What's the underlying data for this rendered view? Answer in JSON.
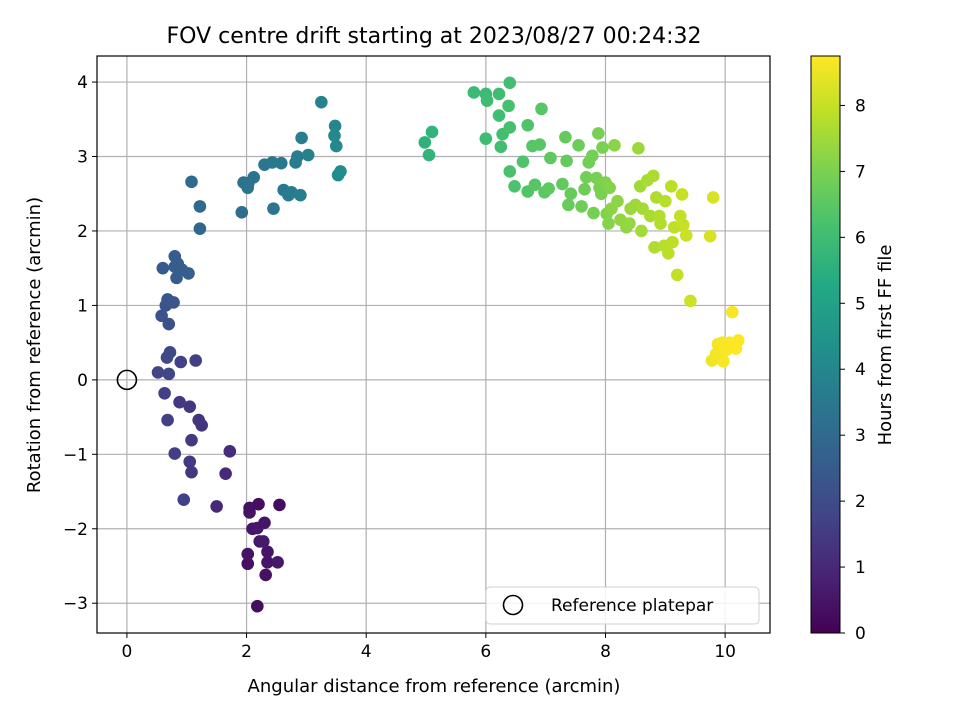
{
  "chart_data": {
    "type": "scatter",
    "title": "FOV centre drift starting at 2023/08/27 00:24:32",
    "xlabel": "Angular distance from reference (arcmin)",
    "ylabel": "Rotation from reference (arcmin)",
    "xlim": [
      -0.5,
      10.75
    ],
    "ylim": [
      -3.4,
      4.35
    ],
    "xticks": [
      "0",
      "2",
      "4",
      "6",
      "8",
      "10"
    ],
    "yticks": [
      "−3",
      "−2",
      "−1",
      "0",
      "1",
      "2",
      "3",
      "4"
    ],
    "grid": true,
    "colormap": "viridis",
    "colorbar": {
      "label": "Hours from first FF file",
      "range": [
        0,
        8.75
      ],
      "ticks": [
        "0",
        "1",
        "2",
        "3",
        "4",
        "5",
        "6",
        "7",
        "8"
      ]
    },
    "legend": {
      "position": "lower-right",
      "entries": [
        {
          "label": "Reference platepar",
          "marker": "open-circle"
        }
      ]
    },
    "reference_point": {
      "x": 0,
      "y": 0
    },
    "points": [
      {
        "x": 2.18,
        "y": -3.04,
        "h": 0.3
      },
      {
        "x": 2.32,
        "y": -2.62,
        "h": 0.4
      },
      {
        "x": 2.02,
        "y": -2.47,
        "h": 0.35
      },
      {
        "x": 2.35,
        "y": -2.45,
        "h": 0.5
      },
      {
        "x": 2.52,
        "y": -2.45,
        "h": 0.55
      },
      {
        "x": 2.02,
        "y": -2.34,
        "h": 0.45
      },
      {
        "x": 2.35,
        "y": -2.31,
        "h": 0.5
      },
      {
        "x": 2.22,
        "y": -2.17,
        "h": 0.55
      },
      {
        "x": 2.28,
        "y": -2.17,
        "h": 0.6
      },
      {
        "x": 2.1,
        "y": -2.0,
        "h": 0.5
      },
      {
        "x": 2.18,
        "y": -1.99,
        "h": 0.55
      },
      {
        "x": 2.3,
        "y": -1.92,
        "h": 0.5
      },
      {
        "x": 2.05,
        "y": -1.78,
        "h": 0.45
      },
      {
        "x": 2.05,
        "y": -1.72,
        "h": 0.4
      },
      {
        "x": 2.2,
        "y": -1.67,
        "h": 0.35
      },
      {
        "x": 2.55,
        "y": -1.68,
        "h": 0.3
      },
      {
        "x": 1.5,
        "y": -1.7,
        "h": 1.0
      },
      {
        "x": 1.65,
        "y": -1.26,
        "h": 1.05
      },
      {
        "x": 1.72,
        "y": -0.96,
        "h": 1.1
      },
      {
        "x": 0.95,
        "y": -1.61,
        "h": 1.7
      },
      {
        "x": 1.08,
        "y": -1.24,
        "h": 1.4
      },
      {
        "x": 1.05,
        "y": -1.1,
        "h": 1.5
      },
      {
        "x": 0.8,
        "y": -0.99,
        "h": 1.6
      },
      {
        "x": 1.08,
        "y": -0.81,
        "h": 1.45
      },
      {
        "x": 1.25,
        "y": -0.61,
        "h": 1.35
      },
      {
        "x": 1.2,
        "y": -0.54,
        "h": 1.3
      },
      {
        "x": 0.68,
        "y": -0.54,
        "h": 1.6
      },
      {
        "x": 1.05,
        "y": -0.36,
        "h": 1.4
      },
      {
        "x": 0.88,
        "y": -0.3,
        "h": 1.45
      },
      {
        "x": 0.63,
        "y": -0.18,
        "h": 1.6
      },
      {
        "x": 0.52,
        "y": 0.1,
        "h": 1.8
      },
      {
        "x": 0.7,
        "y": 0.08,
        "h": 1.85
      },
      {
        "x": 0.9,
        "y": 0.24,
        "h": 1.7
      },
      {
        "x": 1.15,
        "y": 0.26,
        "h": 1.65
      },
      {
        "x": 0.67,
        "y": 0.3,
        "h": 1.9
      },
      {
        "x": 0.72,
        "y": 0.37,
        "h": 1.95
      },
      {
        "x": 0.58,
        "y": 0.86,
        "h": 2.2
      },
      {
        "x": 0.7,
        "y": 0.75,
        "h": 2.15
      },
      {
        "x": 0.65,
        "y": 1.0,
        "h": 2.25
      },
      {
        "x": 0.68,
        "y": 1.08,
        "h": 2.3
      },
      {
        "x": 0.78,
        "y": 1.04,
        "h": 2.35
      },
      {
        "x": 0.6,
        "y": 1.5,
        "h": 2.45
      },
      {
        "x": 0.83,
        "y": 1.37,
        "h": 2.5
      },
      {
        "x": 0.8,
        "y": 1.52,
        "h": 2.55
      },
      {
        "x": 0.92,
        "y": 1.48,
        "h": 2.6
      },
      {
        "x": 1.03,
        "y": 1.43,
        "h": 2.65
      },
      {
        "x": 0.8,
        "y": 1.66,
        "h": 2.6
      },
      {
        "x": 0.85,
        "y": 1.56,
        "h": 2.55
      },
      {
        "x": 1.22,
        "y": 2.03,
        "h": 2.9
      },
      {
        "x": 1.22,
        "y": 2.33,
        "h": 2.95
      },
      {
        "x": 1.08,
        "y": 2.66,
        "h": 3.0
      },
      {
        "x": 1.92,
        "y": 2.25,
        "h": 3.2
      },
      {
        "x": 1.95,
        "y": 2.65,
        "h": 3.25
      },
      {
        "x": 2.02,
        "y": 2.58,
        "h": 3.3
      },
      {
        "x": 2.03,
        "y": 2.64,
        "h": 3.3
      },
      {
        "x": 2.12,
        "y": 2.72,
        "h": 3.35
      },
      {
        "x": 2.3,
        "y": 2.89,
        "h": 3.4
      },
      {
        "x": 2.43,
        "y": 2.92,
        "h": 3.45
      },
      {
        "x": 2.45,
        "y": 2.3,
        "h": 3.4
      },
      {
        "x": 2.58,
        "y": 2.91,
        "h": 3.5
      },
      {
        "x": 2.62,
        "y": 2.55,
        "h": 3.55
      },
      {
        "x": 2.7,
        "y": 2.48,
        "h": 3.6
      },
      {
        "x": 2.75,
        "y": 2.52,
        "h": 3.6
      },
      {
        "x": 2.82,
        "y": 2.92,
        "h": 3.65
      },
      {
        "x": 2.85,
        "y": 3.0,
        "h": 3.7
      },
      {
        "x": 2.9,
        "y": 2.48,
        "h": 3.7
      },
      {
        "x": 2.92,
        "y": 3.25,
        "h": 3.75
      },
      {
        "x": 3.03,
        "y": 3.02,
        "h": 3.8
      },
      {
        "x": 3.25,
        "y": 3.73,
        "h": 3.9
      },
      {
        "x": 3.48,
        "y": 3.41,
        "h": 4.0
      },
      {
        "x": 3.47,
        "y": 3.28,
        "h": 4.05
      },
      {
        "x": 3.5,
        "y": 3.14,
        "h": 4.1
      },
      {
        "x": 3.53,
        "y": 2.75,
        "h": 4.15
      },
      {
        "x": 3.57,
        "y": 2.8,
        "h": 4.2
      },
      {
        "x": 4.98,
        "y": 3.19,
        "h": 5.6
      },
      {
        "x": 5.05,
        "y": 3.02,
        "h": 5.65
      },
      {
        "x": 5.1,
        "y": 3.33,
        "h": 5.7
      },
      {
        "x": 5.8,
        "y": 3.86,
        "h": 5.9
      },
      {
        "x": 6.0,
        "y": 3.84,
        "h": 5.95
      },
      {
        "x": 6.02,
        "y": 3.75,
        "h": 6.0
      },
      {
        "x": 6.0,
        "y": 3.24,
        "h": 6.0
      },
      {
        "x": 6.22,
        "y": 3.84,
        "h": 6.05
      },
      {
        "x": 6.22,
        "y": 3.55,
        "h": 6.05
      },
      {
        "x": 6.25,
        "y": 3.13,
        "h": 6.1
      },
      {
        "x": 6.28,
        "y": 3.3,
        "h": 6.1
      },
      {
        "x": 6.4,
        "y": 3.99,
        "h": 6.1
      },
      {
        "x": 6.38,
        "y": 3.68,
        "h": 6.15
      },
      {
        "x": 6.4,
        "y": 3.39,
        "h": 6.15
      },
      {
        "x": 6.4,
        "y": 2.8,
        "h": 6.2
      },
      {
        "x": 6.48,
        "y": 2.6,
        "h": 6.25
      },
      {
        "x": 6.62,
        "y": 2.93,
        "h": 6.3
      },
      {
        "x": 6.7,
        "y": 3.42,
        "h": 6.3
      },
      {
        "x": 6.7,
        "y": 2.53,
        "h": 6.35
      },
      {
        "x": 6.78,
        "y": 3.14,
        "h": 6.4
      },
      {
        "x": 6.82,
        "y": 2.62,
        "h": 6.4
      },
      {
        "x": 6.9,
        "y": 3.16,
        "h": 6.45
      },
      {
        "x": 6.93,
        "y": 3.64,
        "h": 6.45
      },
      {
        "x": 6.98,
        "y": 2.52,
        "h": 6.5
      },
      {
        "x": 7.05,
        "y": 2.57,
        "h": 6.55
      },
      {
        "x": 7.08,
        "y": 2.98,
        "h": 6.55
      },
      {
        "x": 7.28,
        "y": 2.63,
        "h": 6.6
      },
      {
        "x": 7.33,
        "y": 3.26,
        "h": 6.65
      },
      {
        "x": 7.35,
        "y": 2.94,
        "h": 6.65
      },
      {
        "x": 7.38,
        "y": 2.35,
        "h": 6.7
      },
      {
        "x": 7.42,
        "y": 2.5,
        "h": 6.7
      },
      {
        "x": 7.55,
        "y": 3.15,
        "h": 6.75
      },
      {
        "x": 7.6,
        "y": 2.33,
        "h": 6.8
      },
      {
        "x": 7.65,
        "y": 2.56,
        "h": 6.8
      },
      {
        "x": 7.68,
        "y": 2.72,
        "h": 6.85
      },
      {
        "x": 7.72,
        "y": 2.92,
        "h": 6.85
      },
      {
        "x": 7.78,
        "y": 3.01,
        "h": 6.9
      },
      {
        "x": 7.8,
        "y": 2.24,
        "h": 6.9
      },
      {
        "x": 7.85,
        "y": 2.71,
        "h": 6.95
      },
      {
        "x": 7.88,
        "y": 3.31,
        "h": 6.95
      },
      {
        "x": 7.9,
        "y": 2.58,
        "h": 7.0
      },
      {
        "x": 7.93,
        "y": 2.5,
        "h": 7.0
      },
      {
        "x": 7.95,
        "y": 3.12,
        "h": 7.0
      },
      {
        "x": 8.0,
        "y": 2.65,
        "h": 7.05
      },
      {
        "x": 8.02,
        "y": 2.23,
        "h": 7.1
      },
      {
        "x": 8.05,
        "y": 2.1,
        "h": 7.15
      },
      {
        "x": 8.07,
        "y": 2.58,
        "h": 7.15
      },
      {
        "x": 8.1,
        "y": 2.3,
        "h": 7.2
      },
      {
        "x": 8.15,
        "y": 3.15,
        "h": 7.2
      },
      {
        "x": 8.2,
        "y": 2.4,
        "h": 7.25
      },
      {
        "x": 8.25,
        "y": 2.15,
        "h": 7.3
      },
      {
        "x": 8.35,
        "y": 2.05,
        "h": 7.3
      },
      {
        "x": 8.4,
        "y": 2.1,
        "h": 7.35
      },
      {
        "x": 8.42,
        "y": 2.3,
        "h": 7.4
      },
      {
        "x": 8.5,
        "y": 2.35,
        "h": 7.45
      },
      {
        "x": 8.55,
        "y": 3.11,
        "h": 7.45
      },
      {
        "x": 8.58,
        "y": 2.6,
        "h": 7.5
      },
      {
        "x": 8.6,
        "y": 2.0,
        "h": 7.55
      },
      {
        "x": 8.62,
        "y": 2.3,
        "h": 7.55
      },
      {
        "x": 8.7,
        "y": 2.68,
        "h": 7.6
      },
      {
        "x": 8.75,
        "y": 2.2,
        "h": 7.6
      },
      {
        "x": 8.8,
        "y": 2.74,
        "h": 7.65
      },
      {
        "x": 8.82,
        "y": 1.78,
        "h": 7.7
      },
      {
        "x": 8.85,
        "y": 2.45,
        "h": 7.7
      },
      {
        "x": 8.9,
        "y": 2.2,
        "h": 7.75
      },
      {
        "x": 8.92,
        "y": 2.1,
        "h": 7.75
      },
      {
        "x": 8.98,
        "y": 1.8,
        "h": 7.8
      },
      {
        "x": 9.0,
        "y": 2.4,
        "h": 7.8
      },
      {
        "x": 9.05,
        "y": 1.7,
        "h": 7.85
      },
      {
        "x": 9.1,
        "y": 2.6,
        "h": 7.85
      },
      {
        "x": 9.12,
        "y": 1.85,
        "h": 7.9
      },
      {
        "x": 9.15,
        "y": 2.05,
        "h": 7.9
      },
      {
        "x": 9.2,
        "y": 1.41,
        "h": 7.95
      },
      {
        "x": 9.25,
        "y": 2.2,
        "h": 7.95
      },
      {
        "x": 9.28,
        "y": 2.49,
        "h": 8.0
      },
      {
        "x": 9.3,
        "y": 2.08,
        "h": 8.0
      },
      {
        "x": 9.35,
        "y": 1.94,
        "h": 8.05
      },
      {
        "x": 9.42,
        "y": 1.06,
        "h": 8.1
      },
      {
        "x": 9.75,
        "y": 1.93,
        "h": 8.2
      },
      {
        "x": 9.8,
        "y": 2.45,
        "h": 8.25
      },
      {
        "x": 9.78,
        "y": 0.26,
        "h": 8.55
      },
      {
        "x": 9.85,
        "y": 0.35,
        "h": 8.6
      },
      {
        "x": 9.88,
        "y": 0.48,
        "h": 8.6
      },
      {
        "x": 9.95,
        "y": 0.5,
        "h": 8.65
      },
      {
        "x": 9.97,
        "y": 0.25,
        "h": 8.65
      },
      {
        "x": 10.02,
        "y": 0.4,
        "h": 8.7
      },
      {
        "x": 10.08,
        "y": 0.5,
        "h": 8.7
      },
      {
        "x": 10.12,
        "y": 0.91,
        "h": 8.65
      },
      {
        "x": 10.18,
        "y": 0.42,
        "h": 8.75
      },
      {
        "x": 10.22,
        "y": 0.53,
        "h": 8.75
      }
    ]
  }
}
